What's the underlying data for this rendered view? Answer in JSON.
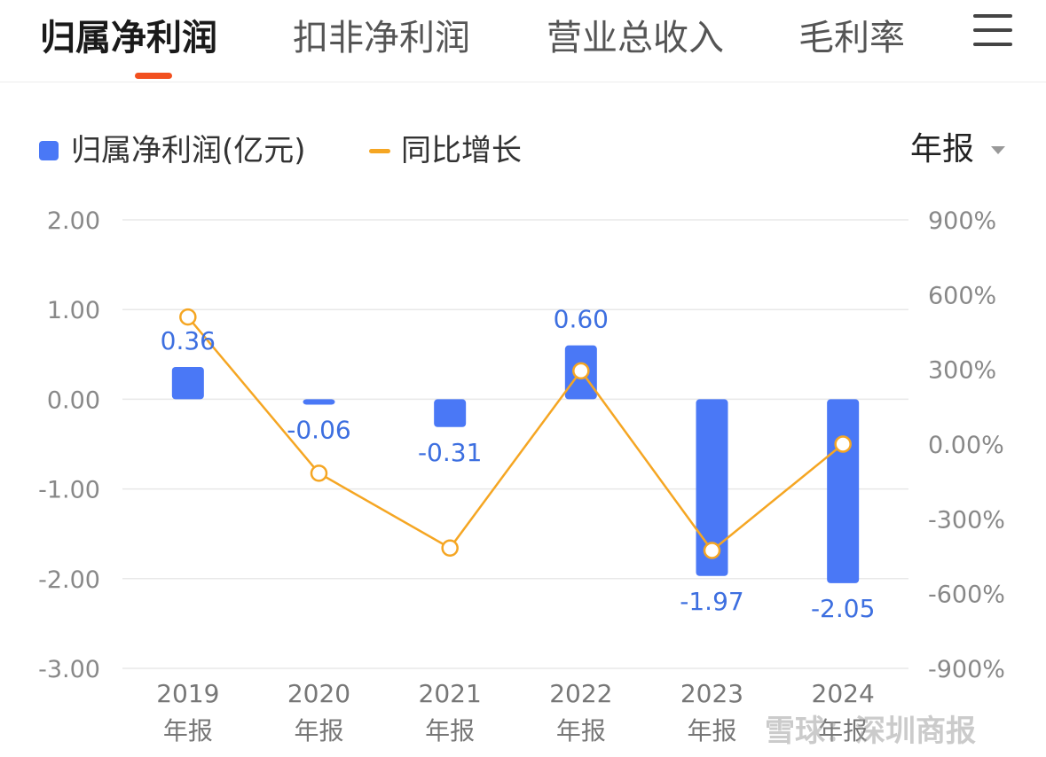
{
  "tabs": [
    {
      "label": "归属净利润",
      "active": true
    },
    {
      "label": "扣非净利润",
      "active": false
    },
    {
      "label": "营业总收入",
      "active": false
    },
    {
      "label": "毛利率",
      "active": false
    }
  ],
  "menu_icon": "hamburger-menu-icon",
  "period_select": {
    "value": "年报"
  },
  "watermark": "雪球：深圳商报",
  "colors": {
    "bar": "#4a78f6",
    "line": "#f5a623",
    "accent": "#f2501f",
    "label": "#3d6fe0"
  },
  "chart_data": {
    "type": "bar+line",
    "categories": [
      "2019\n年报",
      "2020\n年报",
      "2021\n年报",
      "2022\n年报",
      "2023\n年报",
      "2024\n年报"
    ],
    "category_lines": [
      [
        "2019",
        "年报"
      ],
      [
        "2020",
        "年报"
      ],
      [
        "2021",
        "年报"
      ],
      [
        "2022",
        "年报"
      ],
      [
        "2023",
        "年报"
      ],
      [
        "2024",
        "年报"
      ]
    ],
    "series": [
      {
        "name": "归属净利润(亿元)",
        "kind": "bar",
        "axis": "left",
        "values": [
          0.36,
          -0.06,
          -0.31,
          0.6,
          -1.97,
          -2.05
        ],
        "labels": [
          "0.36",
          "-0.06",
          "-0.31",
          "0.60",
          "-1.97",
          "-2.05"
        ]
      },
      {
        "name": "同比增长",
        "kind": "line",
        "axis": "right",
        "values": [
          510,
          -117,
          -417,
          294,
          -427,
          0
        ]
      }
    ],
    "y_left": {
      "ticks": [
        "2.00",
        "1.00",
        "0.00",
        "-1.00",
        "-2.00",
        "-3.00"
      ],
      "range": [
        -3,
        2
      ]
    },
    "y_right": {
      "ticks": [
        "900%",
        "600%",
        "300%",
        "0.00%",
        "-300%",
        "-600%",
        "-900%"
      ],
      "range": [
        -900,
        900
      ]
    },
    "legend_position": "top-left",
    "grid": true
  }
}
